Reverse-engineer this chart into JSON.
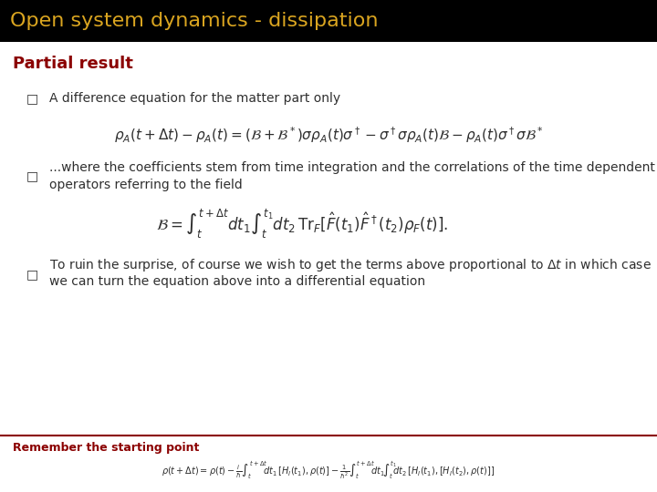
{
  "title": "Open system dynamics - dissipation",
  "title_color": "#DAA520",
  "title_bg_color": "#000000",
  "title_fontsize": 16,
  "section_title": "Partial result",
  "section_title_color": "#8B0000",
  "section_title_fontsize": 13,
  "bg_color": "#F0F0F0",
  "content_bg_color": "#FFFFFF",
  "bullet1_text": "A difference equation for the matter part only",
  "bullet2_line1": "...where the coefficients stem from time integration and the correlations of the time dependent",
  "bullet2_line2": "operators referring to the field",
  "bullet3_line1": "To ruin the surprise, of course we wish to get the terms above proportional to",
  "bullet3_line2": "we can turn the equation above into a differential equation",
  "footer_text": "Remember the starting point",
  "footer_color": "#8B0000",
  "footer_line_color": "#8B0000",
  "text_color": "#2F2F2F",
  "text_fontsize": 10,
  "eq_fontsize": 11
}
